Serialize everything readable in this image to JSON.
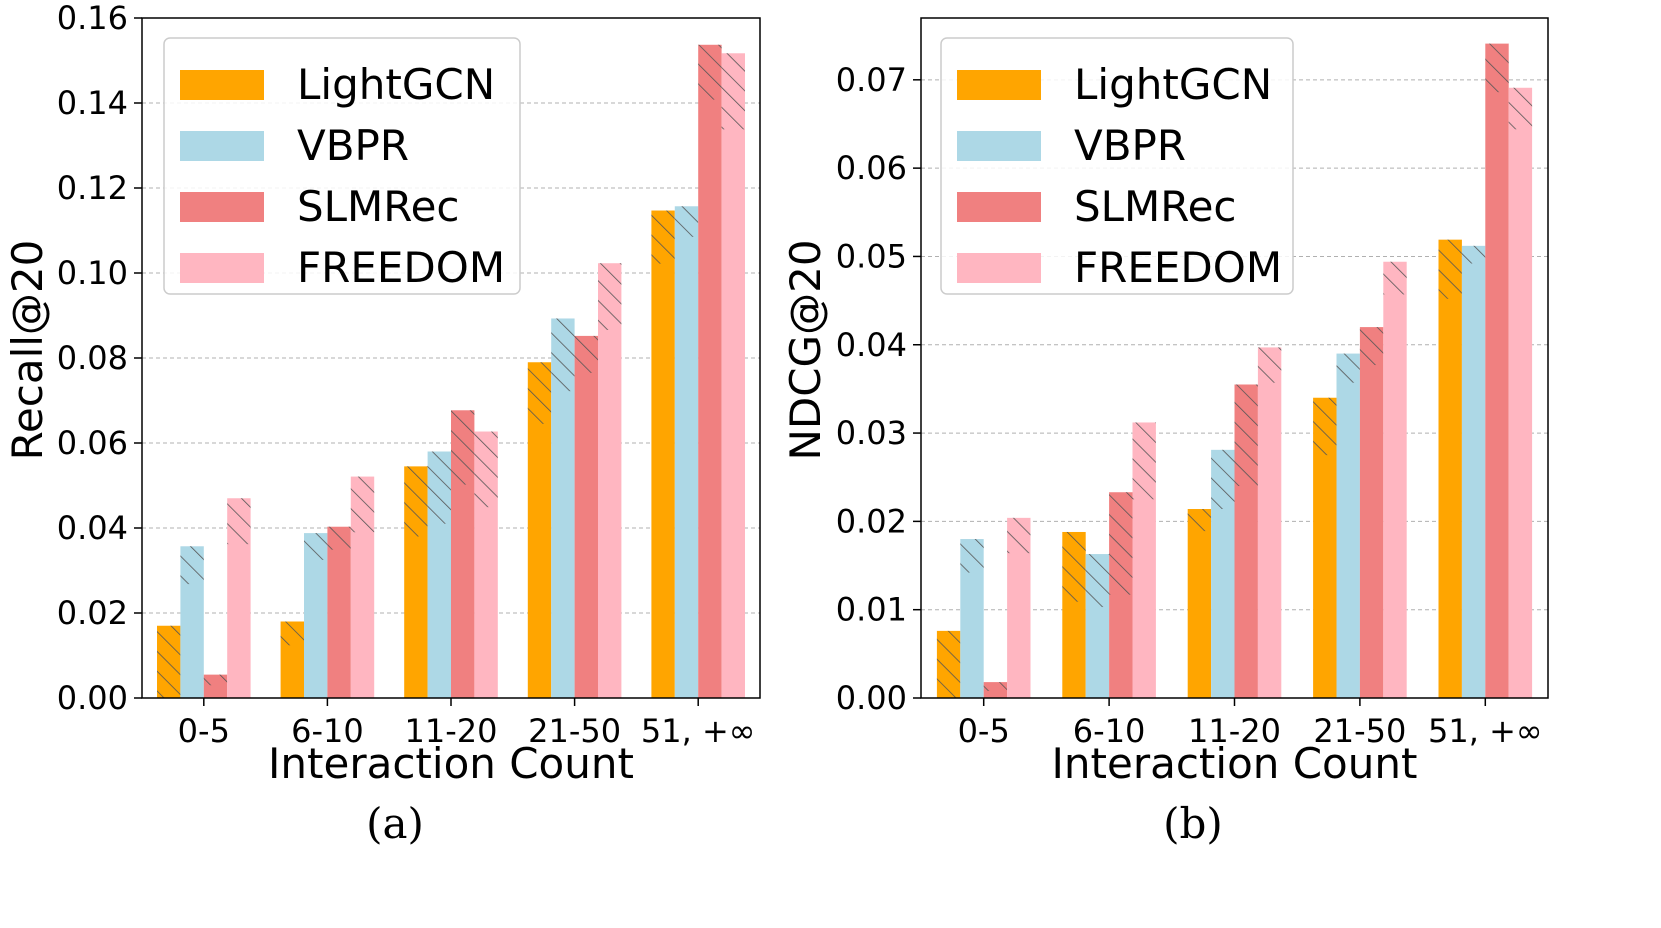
{
  "chart_data": [
    {
      "type": "bar",
      "caption": "(a)",
      "xlabel": "Interaction Count",
      "ylabel": "Recall@20",
      "categories": [
        "0-5",
        "6-10",
        "11-20",
        "21-50",
        "51, +∞"
      ],
      "ylim": [
        0,
        0.16
      ],
      "yticks": [
        "0.00",
        "0.02",
        "0.04",
        "0.06",
        "0.08",
        "0.10",
        "0.12",
        "0.14",
        "0.16"
      ],
      "grid": "horizontal dashed",
      "legend_position": "top-left",
      "series": [
        {
          "name": "LightGCN",
          "color": "#FFA500",
          "base": [
            0.0,
            0.0124,
            0.038,
            0.0645,
            0.1022
          ],
          "total": [
            0.017,
            0.018,
            0.0545,
            0.079,
            0.1147
          ]
        },
        {
          "name": "VBPR",
          "color": "#ADD8E6",
          "base": [
            0.0268,
            0.0325,
            0.041,
            0.0722,
            0.1085
          ],
          "total": [
            0.0357,
            0.0388,
            0.058,
            0.0893,
            0.1157
          ]
        },
        {
          "name": "SLMRec",
          "color": "#F08080",
          "base": [
            0.003,
            0.0349,
            0.0502,
            0.0765,
            0.1408
          ],
          "total": [
            0.0055,
            0.0403,
            0.0677,
            0.0852,
            0.1537
          ]
        },
        {
          "name": "FREEDOM",
          "color": "#FFB6C1",
          "base": [
            0.0362,
            0.039,
            0.0449,
            0.0866,
            0.1338
          ],
          "total": [
            0.047,
            0.0521,
            0.0627,
            0.1023,
            0.1517
          ]
        }
      ]
    },
    {
      "type": "bar",
      "caption": "(b)",
      "xlabel": "Interaction Count",
      "ylabel": "NDCG@20",
      "categories": [
        "0-5",
        "6-10",
        "11-20",
        "21-50",
        "51, +∞"
      ],
      "ylim": [
        0,
        0.077
      ],
      "yticks": [
        "0.00",
        "0.01",
        "0.02",
        "0.03",
        "0.04",
        "0.05",
        "0.06",
        "0.07"
      ],
      "grid": "horizontal dashed",
      "legend_position": "top-left",
      "series": [
        {
          "name": "LightGCN",
          "color": "#FFA500",
          "base": [
            0.0,
            0.0109,
            0.0189,
            0.0275,
            0.0452
          ],
          "total": [
            0.0076,
            0.0188,
            0.0214,
            0.034,
            0.0519
          ]
        },
        {
          "name": "VBPR",
          "color": "#ADD8E6",
          "base": [
            0.0142,
            0.0103,
            0.0214,
            0.0357,
            0.0492
          ],
          "total": [
            0.018,
            0.0163,
            0.0281,
            0.039,
            0.0512
          ]
        },
        {
          "name": "SLMRec",
          "color": "#F08080",
          "base": [
            0.0008,
            0.0117,
            0.024,
            0.0377,
            0.0686
          ],
          "total": [
            0.0018,
            0.0233,
            0.0355,
            0.042,
            0.0741
          ]
        },
        {
          "name": "FREEDOM",
          "color": "#FFB6C1",
          "base": [
            0.0164,
            0.0225,
            0.0357,
            0.0457,
            0.0644
          ],
          "total": [
            0.0204,
            0.0312,
            0.0397,
            0.0494,
            0.0691
          ]
        }
      ]
    }
  ]
}
